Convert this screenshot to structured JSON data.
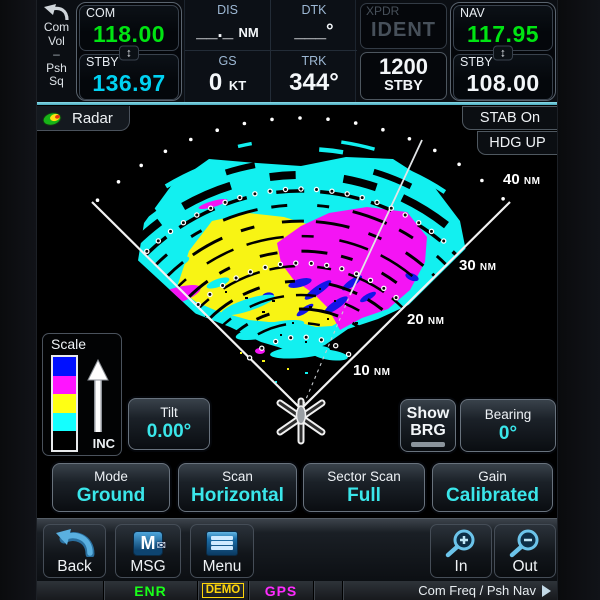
{
  "topbar": {
    "knob_hint": {
      "lines": [
        "Com",
        "Vol",
        "–",
        "Psh",
        "Sq"
      ]
    },
    "com": {
      "label": "COM",
      "active": "118.00",
      "stby_label": "STBY",
      "standby": "136.97"
    },
    "flight_data": {
      "dis": {
        "label": "DIS",
        "value": "__._",
        "unit": "NM"
      },
      "dtk": {
        "label": "DTK",
        "value": "___",
        "unit": "°"
      },
      "gs": {
        "label": "GS",
        "value": "0",
        "unit": "KT"
      },
      "trk": {
        "label": "TRK",
        "value": "344°"
      }
    },
    "xpdr": {
      "label": "XPDR",
      "ident": "IDENT",
      "code": "1200",
      "mode": "STBY"
    },
    "nav": {
      "label": "NAV",
      "active": "117.95",
      "stby_label": "STBY",
      "standby": "108.00"
    }
  },
  "radar": {
    "tab_label": "Radar",
    "stab_label": "STAB On",
    "hdg_label": "HDG UP",
    "range_labels": [
      {
        "value": "40",
        "unit": "NM"
      },
      {
        "value": "30",
        "unit": "NM"
      },
      {
        "value": "20",
        "unit": "NM"
      },
      {
        "value": "10",
        "unit": "NM"
      }
    ],
    "scale": {
      "title": "Scale",
      "inc_label": "INC",
      "colors": [
        "#0010ff",
        "#ff14ff",
        "#ffff14",
        "#14ffff",
        "#000000"
      ]
    },
    "tilt": {
      "label": "Tilt",
      "value": "0.00°"
    },
    "show_brg": {
      "line1": "Show",
      "line2": "BRG"
    },
    "bearing": {
      "label": "Bearing",
      "value": "0°"
    }
  },
  "controls": [
    {
      "label": "Mode",
      "value": "Ground"
    },
    {
      "label": "Scan",
      "value": "Horizontal"
    },
    {
      "label": "Sector Scan",
      "value": "Full"
    },
    {
      "label": "Gain",
      "value": "Calibrated"
    }
  ],
  "toolbar": {
    "back": "Back",
    "msg": "MSG",
    "menu": "Menu",
    "zoom_in": "In",
    "zoom_out": "Out"
  },
  "statusbar": {
    "enr": "ENR",
    "demo": "DEMO",
    "gps": "GPS",
    "softkey_hint": "Com Freq / Psh Nav"
  },
  "colors": {
    "active_freq_green": "#00e412",
    "standby_com_cyan": "#00d2f2",
    "button_value_cyan": "#3ae6ea",
    "label_steel_blue": "#9db8d4",
    "enr_green": "#19ff19",
    "demo_yellow": "#ffd50a",
    "gps_magenta": "#ff2bff",
    "teal_divider": "#66c9d9"
  }
}
